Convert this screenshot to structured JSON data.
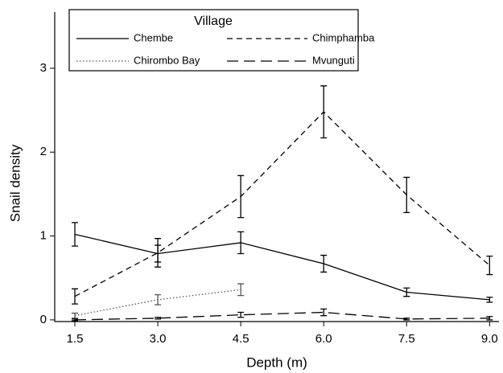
{
  "chart_data": {
    "type": "line",
    "x_label": "Depth (m)",
    "y_label": "Snail density",
    "legend_title": "Village",
    "legend": "upper left",
    "x": [
      1.5,
      3.0,
      4.5,
      6.0,
      7.5,
      9.0
    ],
    "xlim": [
      1.136,
      9.17
    ],
    "xticks": [
      1.5,
      {
        "value": 3.0,
        "label": "3.0"
      },
      4.5,
      {
        "value": 6.0,
        "label": "6.0"
      },
      7.5,
      {
        "value": 9.0,
        "label": "9.0"
      }
    ],
    "ylim": [
      -0.02,
      3.67
    ],
    "yticks": [
      0,
      1,
      2,
      3
    ],
    "series": [
      {
        "name": "Chembe",
        "color": "#000000",
        "dash": "solid",
        "values": [
          1.02,
          0.79,
          0.92,
          0.67,
          0.33,
          0.24
        ],
        "errors": [
          0.14,
          0.1,
          0.13,
          0.1,
          0.05,
          0.03
        ]
      },
      {
        "name": "Chimphamba",
        "color": "#000000",
        "dash": "dashed",
        "values": [
          0.28,
          0.8,
          1.47,
          2.48,
          1.49,
          0.65
        ],
        "errors": [
          0.09,
          0.17,
          0.25,
          0.31,
          0.21,
          0.11
        ]
      },
      {
        "name": "Chirombo Bay",
        "color": "#555555",
        "dash": "dotted",
        "values": [
          0.05,
          0.24,
          0.36,
          null,
          null,
          null
        ],
        "errors": [
          0.03,
          0.06,
          0.07,
          null,
          null,
          null
        ]
      },
      {
        "name": "Mvunguti",
        "color": "#000000",
        "dash": "longdash",
        "values": [
          0.0,
          0.02,
          0.06,
          0.09,
          0.01,
          0.02
        ],
        "errors": [
          0.01,
          0.01,
          0.03,
          0.04,
          0.01,
          0.02
        ]
      }
    ]
  }
}
